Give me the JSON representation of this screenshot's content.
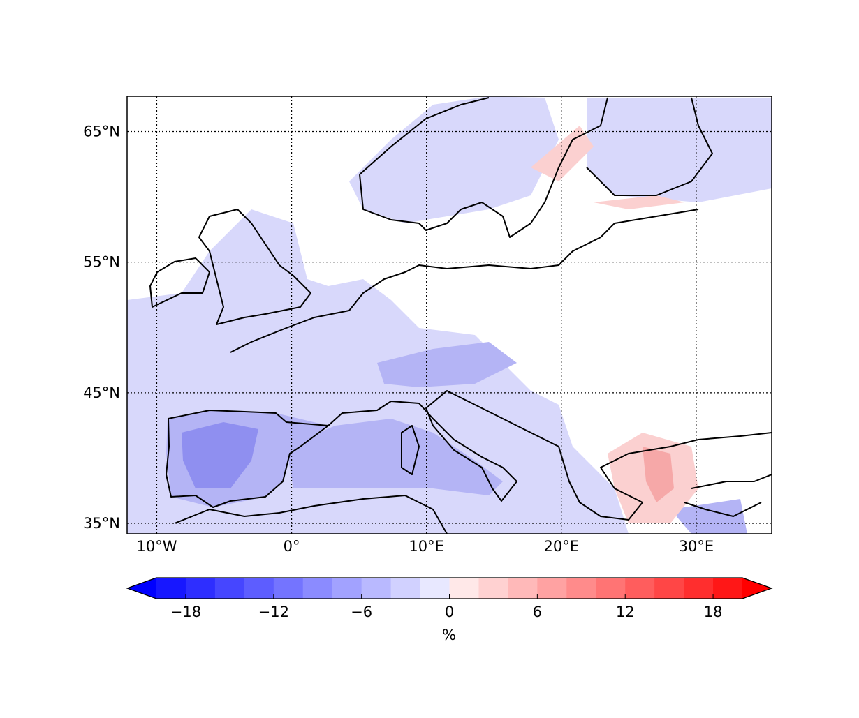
{
  "map": {
    "xlim": [
      -12.2,
      35.6
    ],
    "ylim": [
      34.2,
      67.7
    ],
    "xticks": [
      {
        "value": -10,
        "label": "10°W"
      },
      {
        "value": 0,
        "label": "0°"
      },
      {
        "value": 10,
        "label": "10°E"
      },
      {
        "value": 20,
        "label": "20°E"
      },
      {
        "value": 30,
        "label": "30°E"
      }
    ],
    "yticks": [
      {
        "value": 35,
        "label": "35°N"
      },
      {
        "value": 45,
        "label": "45°N"
      },
      {
        "value": 55,
        "label": "55°N"
      },
      {
        "value": 65,
        "label": "65°N"
      }
    ],
    "grid": true
  },
  "colorbar": {
    "label": "%",
    "levels": [
      -20,
      -18,
      -16,
      -14,
      -12,
      -10,
      -8,
      -6,
      -4,
      -2,
      0,
      2,
      4,
      6,
      8,
      10,
      12,
      14,
      16,
      18,
      20
    ],
    "colors": [
      "#1717ff",
      "#2e2eff",
      "#4646ff",
      "#5d5dff",
      "#7474ff",
      "#8b8bff",
      "#a2a2ff",
      "#b9b9ff",
      "#d1d1ff",
      "#e8e8ff",
      "#ffe8e8",
      "#ffd1d1",
      "#ffb9b9",
      "#ffa2a2",
      "#ff8b8b",
      "#ff7474",
      "#ff5d5d",
      "#ff4646",
      "#ff2e2e",
      "#ff1717"
    ],
    "under_color": "#0000ff",
    "over_color": "#ff0000",
    "ticks": [
      {
        "value": -18,
        "label": "−18"
      },
      {
        "value": -12,
        "label": "−12"
      },
      {
        "value": -6,
        "label": "−6"
      },
      0,
      6,
      12,
      18
    ]
  }
}
